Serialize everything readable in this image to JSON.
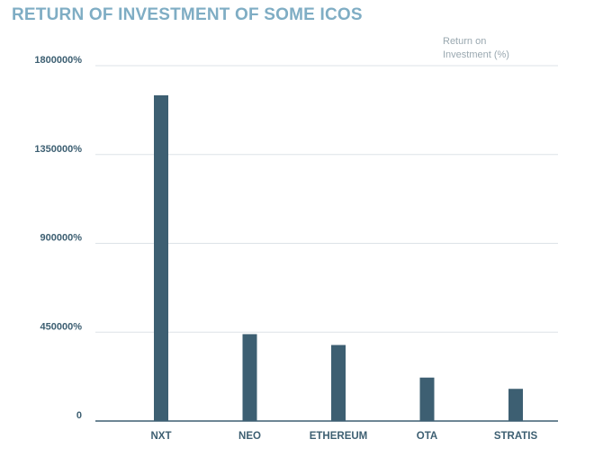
{
  "colors": {
    "title": "#7fadc4",
    "bar": "#3d5f72",
    "axis_text": "#3d5f72",
    "legend_text": "#9aa8b0",
    "grid": "#dde3e7",
    "baseline": "#3d5f72"
  },
  "chart_data": {
    "type": "bar",
    "title": "RETURN OF INVESTMENT OF SOME ICOS",
    "legend": {
      "line1": "Return on",
      "line2": "Investment (%)",
      "position": "top-right"
    },
    "categories": [
      "NXT",
      "NEO",
      "ETHEREUM",
      "OTA",
      "STRATIS"
    ],
    "series": [
      {
        "values": [
          1650000,
          440000,
          385000,
          220000,
          163000
        ]
      }
    ],
    "ylim": [
      0,
      1800000
    ],
    "yticks": [
      {
        "value": 0,
        "label": "0"
      },
      {
        "value": 450000,
        "label": "450000%"
      },
      {
        "value": 900000,
        "label": "900000%"
      },
      {
        "value": 1350000,
        "label": "1350000%"
      },
      {
        "value": 1800000,
        "label": "1800000%"
      }
    ],
    "grid": true
  }
}
